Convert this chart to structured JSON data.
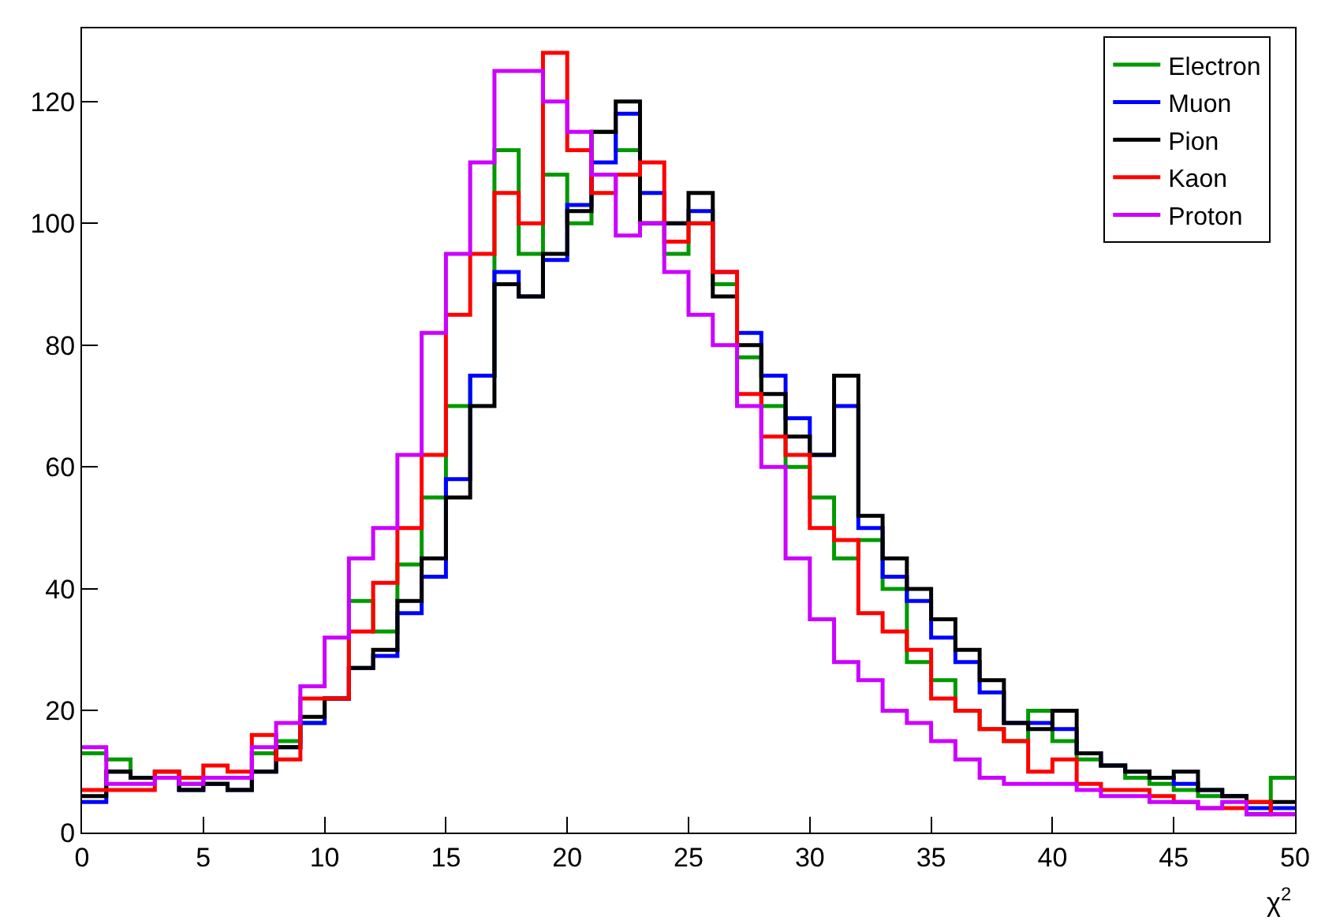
{
  "chart_data": {
    "type": "histogram",
    "xlabel": "χ$^{2}$",
    "bins": [
      0,
      1,
      2,
      3,
      4,
      5,
      6,
      7,
      8,
      9,
      10,
      11,
      12,
      13,
      14,
      15,
      16,
      17,
      18,
      19,
      20,
      21,
      22,
      23,
      24,
      25,
      26,
      27,
      28,
      29,
      30,
      31,
      32,
      33,
      34,
      35,
      36,
      37,
      38,
      39,
      40,
      41,
      42,
      43,
      44,
      45,
      46,
      47,
      48,
      49,
      50
    ],
    "series": [
      {
        "name": "Electron",
        "color": "#009900",
        "values": [
          13,
          12,
          9,
          9,
          8,
          9,
          9,
          13,
          15,
          18,
          22,
          38,
          33,
          44,
          55,
          70,
          75,
          112,
          95,
          108,
          100,
          115,
          112,
          100,
          95,
          100,
          90,
          78,
          70,
          60,
          55,
          45,
          48,
          40,
          28,
          25,
          20,
          17,
          15,
          20,
          15,
          12,
          11,
          9,
          8,
          7,
          6,
          6,
          5,
          9
        ]
      },
      {
        "name": "Muon",
        "color": "#0000ff",
        "values": [
          5,
          10,
          9,
          9,
          7,
          8,
          7,
          10,
          14,
          18,
          22,
          27,
          29,
          36,
          42,
          58,
          75,
          92,
          88,
          94,
          103,
          110,
          118,
          105,
          100,
          102,
          92,
          82,
          75,
          68,
          62,
          70,
          50,
          42,
          38,
          32,
          28,
          23,
          18,
          18,
          17,
          13,
          11,
          10,
          9,
          8,
          7,
          6,
          4,
          4
        ]
      },
      {
        "name": "Pion",
        "color": "#000000",
        "values": [
          6,
          10,
          9,
          10,
          7,
          8,
          7,
          10,
          14,
          19,
          22,
          27,
          30,
          38,
          45,
          55,
          70,
          90,
          88,
          95,
          102,
          115,
          120,
          100,
          100,
          105,
          88,
          80,
          72,
          65,
          62,
          75,
          52,
          45,
          40,
          35,
          30,
          25,
          18,
          17,
          20,
          13,
          11,
          10,
          9,
          10,
          7,
          6,
          3,
          5
        ]
      },
      {
        "name": "Kaon",
        "color": "#ff0000",
        "values": [
          7,
          7,
          7,
          10,
          9,
          11,
          10,
          16,
          12,
          22,
          22,
          33,
          41,
          50,
          62,
          85,
          95,
          105,
          100,
          128,
          112,
          105,
          108,
          110,
          97,
          100,
          92,
          72,
          65,
          62,
          50,
          48,
          36,
          33,
          30,
          22,
          20,
          17,
          15,
          10,
          12,
          8,
          7,
          7,
          6,
          5,
          4,
          4,
          5,
          3
        ]
      },
      {
        "name": "Proton",
        "color": "#cc00ff",
        "values": [
          14,
          8,
          8,
          9,
          8,
          9,
          9,
          14,
          18,
          24,
          32,
          45,
          50,
          62,
          82,
          95,
          110,
          125,
          125,
          120,
          115,
          108,
          98,
          100,
          92,
          85,
          80,
          70,
          60,
          45,
          35,
          28,
          25,
          20,
          18,
          15,
          12,
          9,
          8,
          8,
          8,
          7,
          6,
          6,
          5,
          5,
          4,
          5,
          3,
          3
        ]
      }
    ],
    "xlim": [
      0,
      50
    ],
    "xticks": [
      0,
      5,
      10,
      15,
      20,
      25,
      30,
      35,
      40,
      45,
      50
    ],
    "ylim": [
      0,
      132
    ],
    "yticks": [
      0,
      20,
      40,
      60,
      80,
      100,
      120
    ],
    "legend": "top right"
  }
}
